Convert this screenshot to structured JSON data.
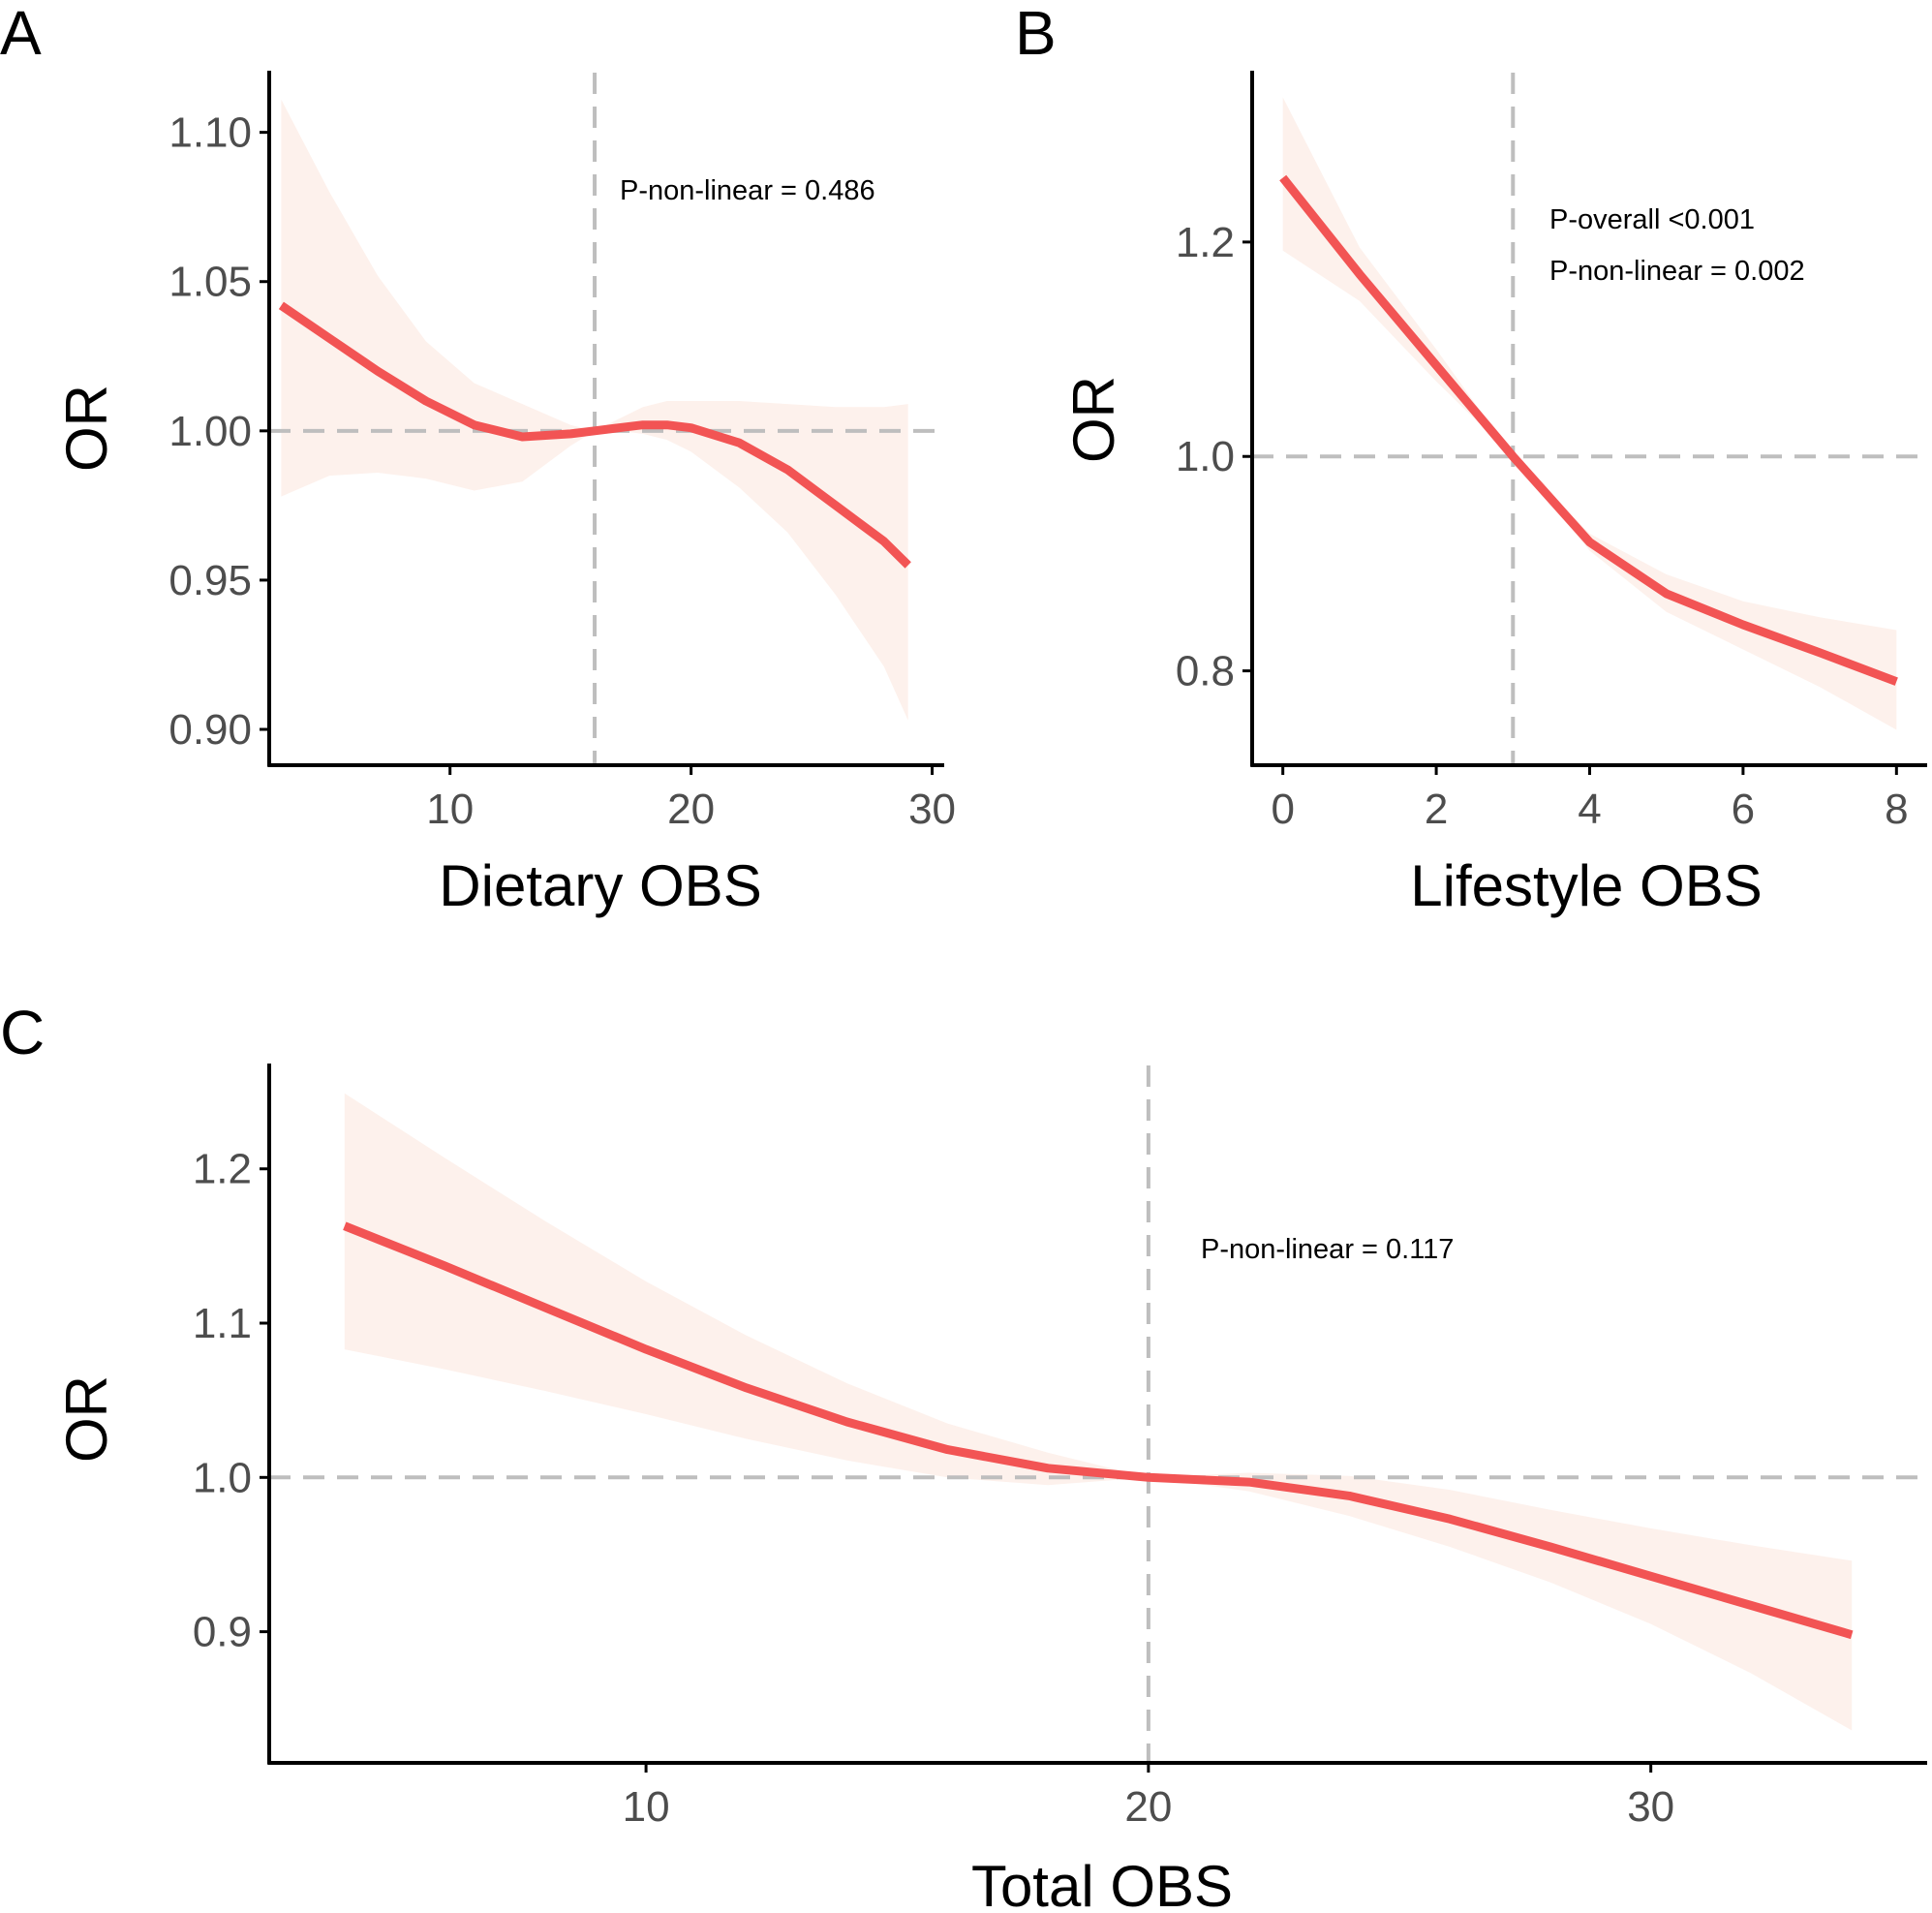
{
  "chart_data": [
    {
      "panel": "A",
      "type": "line",
      "xlabel": "Dietary OBS",
      "ylabel": "OR",
      "xlim": [
        2.5,
        30.5
      ],
      "ylim": [
        0.888,
        1.12
      ],
      "xticks": [
        10,
        20,
        30
      ],
      "yticks": [
        0.9,
        0.95,
        1.0,
        1.05,
        1.1
      ],
      "ytick_labels": [
        "0.90",
        "0.95",
        "1.00",
        "1.05",
        "1.10"
      ],
      "xticks_labels": [
        "10",
        "20",
        "30"
      ],
      "ref_x": 16,
      "ref_y": 1.0,
      "annotations": [
        "P-non-linear = 0.486"
      ],
      "series": [
        {
          "name": "OR",
          "color": "#F25454",
          "x": [
            3,
            5,
            7,
            9,
            11,
            13,
            15,
            16,
            17,
            18,
            19,
            20,
            22,
            24,
            26,
            28,
            29
          ],
          "y": [
            1.042,
            1.031,
            1.02,
            1.01,
            1.002,
            0.998,
            0.999,
            1.0,
            1.001,
            1.002,
            1.002,
            1.001,
            0.996,
            0.987,
            0.975,
            0.963,
            0.955
          ],
          "lower": [
            0.978,
            0.985,
            0.986,
            0.984,
            0.98,
            0.983,
            0.995,
            1.0,
            1.0,
            0.999,
            0.997,
            0.993,
            0.981,
            0.966,
            0.945,
            0.921,
            0.903
          ],
          "upper": [
            1.111,
            1.08,
            1.052,
            1.03,
            1.016,
            1.009,
            1.002,
            1.0,
            1.004,
            1.008,
            1.01,
            1.01,
            1.01,
            1.009,
            1.008,
            1.008,
            1.009
          ]
        }
      ]
    },
    {
      "panel": "B",
      "type": "line",
      "xlabel": "Lifestyle OBS",
      "ylabel": "OR",
      "xlim": [
        -0.4,
        8.4
      ],
      "ylim": [
        0.712,
        1.358
      ],
      "xticks": [
        0,
        2,
        4,
        6,
        8
      ],
      "yticks": [
        0.8,
        1.0,
        1.2
      ],
      "ytick_labels": [
        "0.8",
        "1.0",
        "1.2"
      ],
      "xticks_labels": [
        "0",
        "2",
        "4",
        "6",
        "8"
      ],
      "ref_x": 3,
      "ref_y": 1.0,
      "annotations": [
        "P-overall <0.001",
        "P-non-linear = 0.002"
      ],
      "series": [
        {
          "name": "OR",
          "color": "#F25454",
          "x": [
            0,
            1,
            2,
            3,
            4,
            5,
            6,
            7,
            8
          ],
          "y": [
            1.26,
            1.17,
            1.085,
            1.0,
            0.92,
            0.872,
            0.843,
            0.817,
            0.79
          ],
          "lower": [
            1.192,
            1.145,
            1.07,
            1.0,
            0.912,
            0.855,
            0.82,
            0.785,
            0.745
          ],
          "upper": [
            1.335,
            1.195,
            1.1,
            1.0,
            0.928,
            0.89,
            0.865,
            0.85,
            0.838
          ]
        }
      ]
    },
    {
      "panel": "C",
      "type": "line",
      "xlabel": "Total OBS",
      "ylabel": "OR",
      "xlim": [
        2.5,
        35.5
      ],
      "ylim": [
        0.815,
        1.267
      ],
      "xticks": [
        10,
        20,
        30
      ],
      "yticks": [
        0.9,
        1.0,
        1.1,
        1.2
      ],
      "ytick_labels": [
        "0.9",
        "1.0",
        "1.1",
        "1.2"
      ],
      "xticks_labels": [
        "10",
        "20",
        "30"
      ],
      "ref_x": 20,
      "ref_y": 1.0,
      "annotations": [
        "P-non-linear = 0.117"
      ],
      "series": [
        {
          "name": "OR",
          "color": "#F25454",
          "x": [
            4,
            6,
            8,
            10,
            12,
            14,
            16,
            18,
            20,
            22,
            24,
            26,
            28,
            30,
            32,
            34
          ],
          "y": [
            1.163,
            1.137,
            1.11,
            1.083,
            1.058,
            1.036,
            1.018,
            1.006,
            1.0,
            0.997,
            0.988,
            0.973,
            0.955,
            0.936,
            0.917,
            0.898
          ],
          "lower": [
            1.083,
            1.07,
            1.056,
            1.041,
            1.025,
            1.011,
            1.0,
            0.995,
            1.0,
            0.991,
            0.975,
            0.955,
            0.932,
            0.905,
            0.873,
            0.836
          ],
          "upper": [
            1.249,
            1.207,
            1.166,
            1.127,
            1.092,
            1.061,
            1.035,
            1.016,
            1.0,
            1.003,
            1.001,
            0.992,
            0.979,
            0.967,
            0.956,
            0.946
          ]
        }
      ]
    }
  ],
  "colors": {
    "line": "#F25454",
    "band": "#FDF1EC",
    "ref": "#BEBEBE",
    "axis": "#000000",
    "tick_text": "#4d4d4d"
  }
}
